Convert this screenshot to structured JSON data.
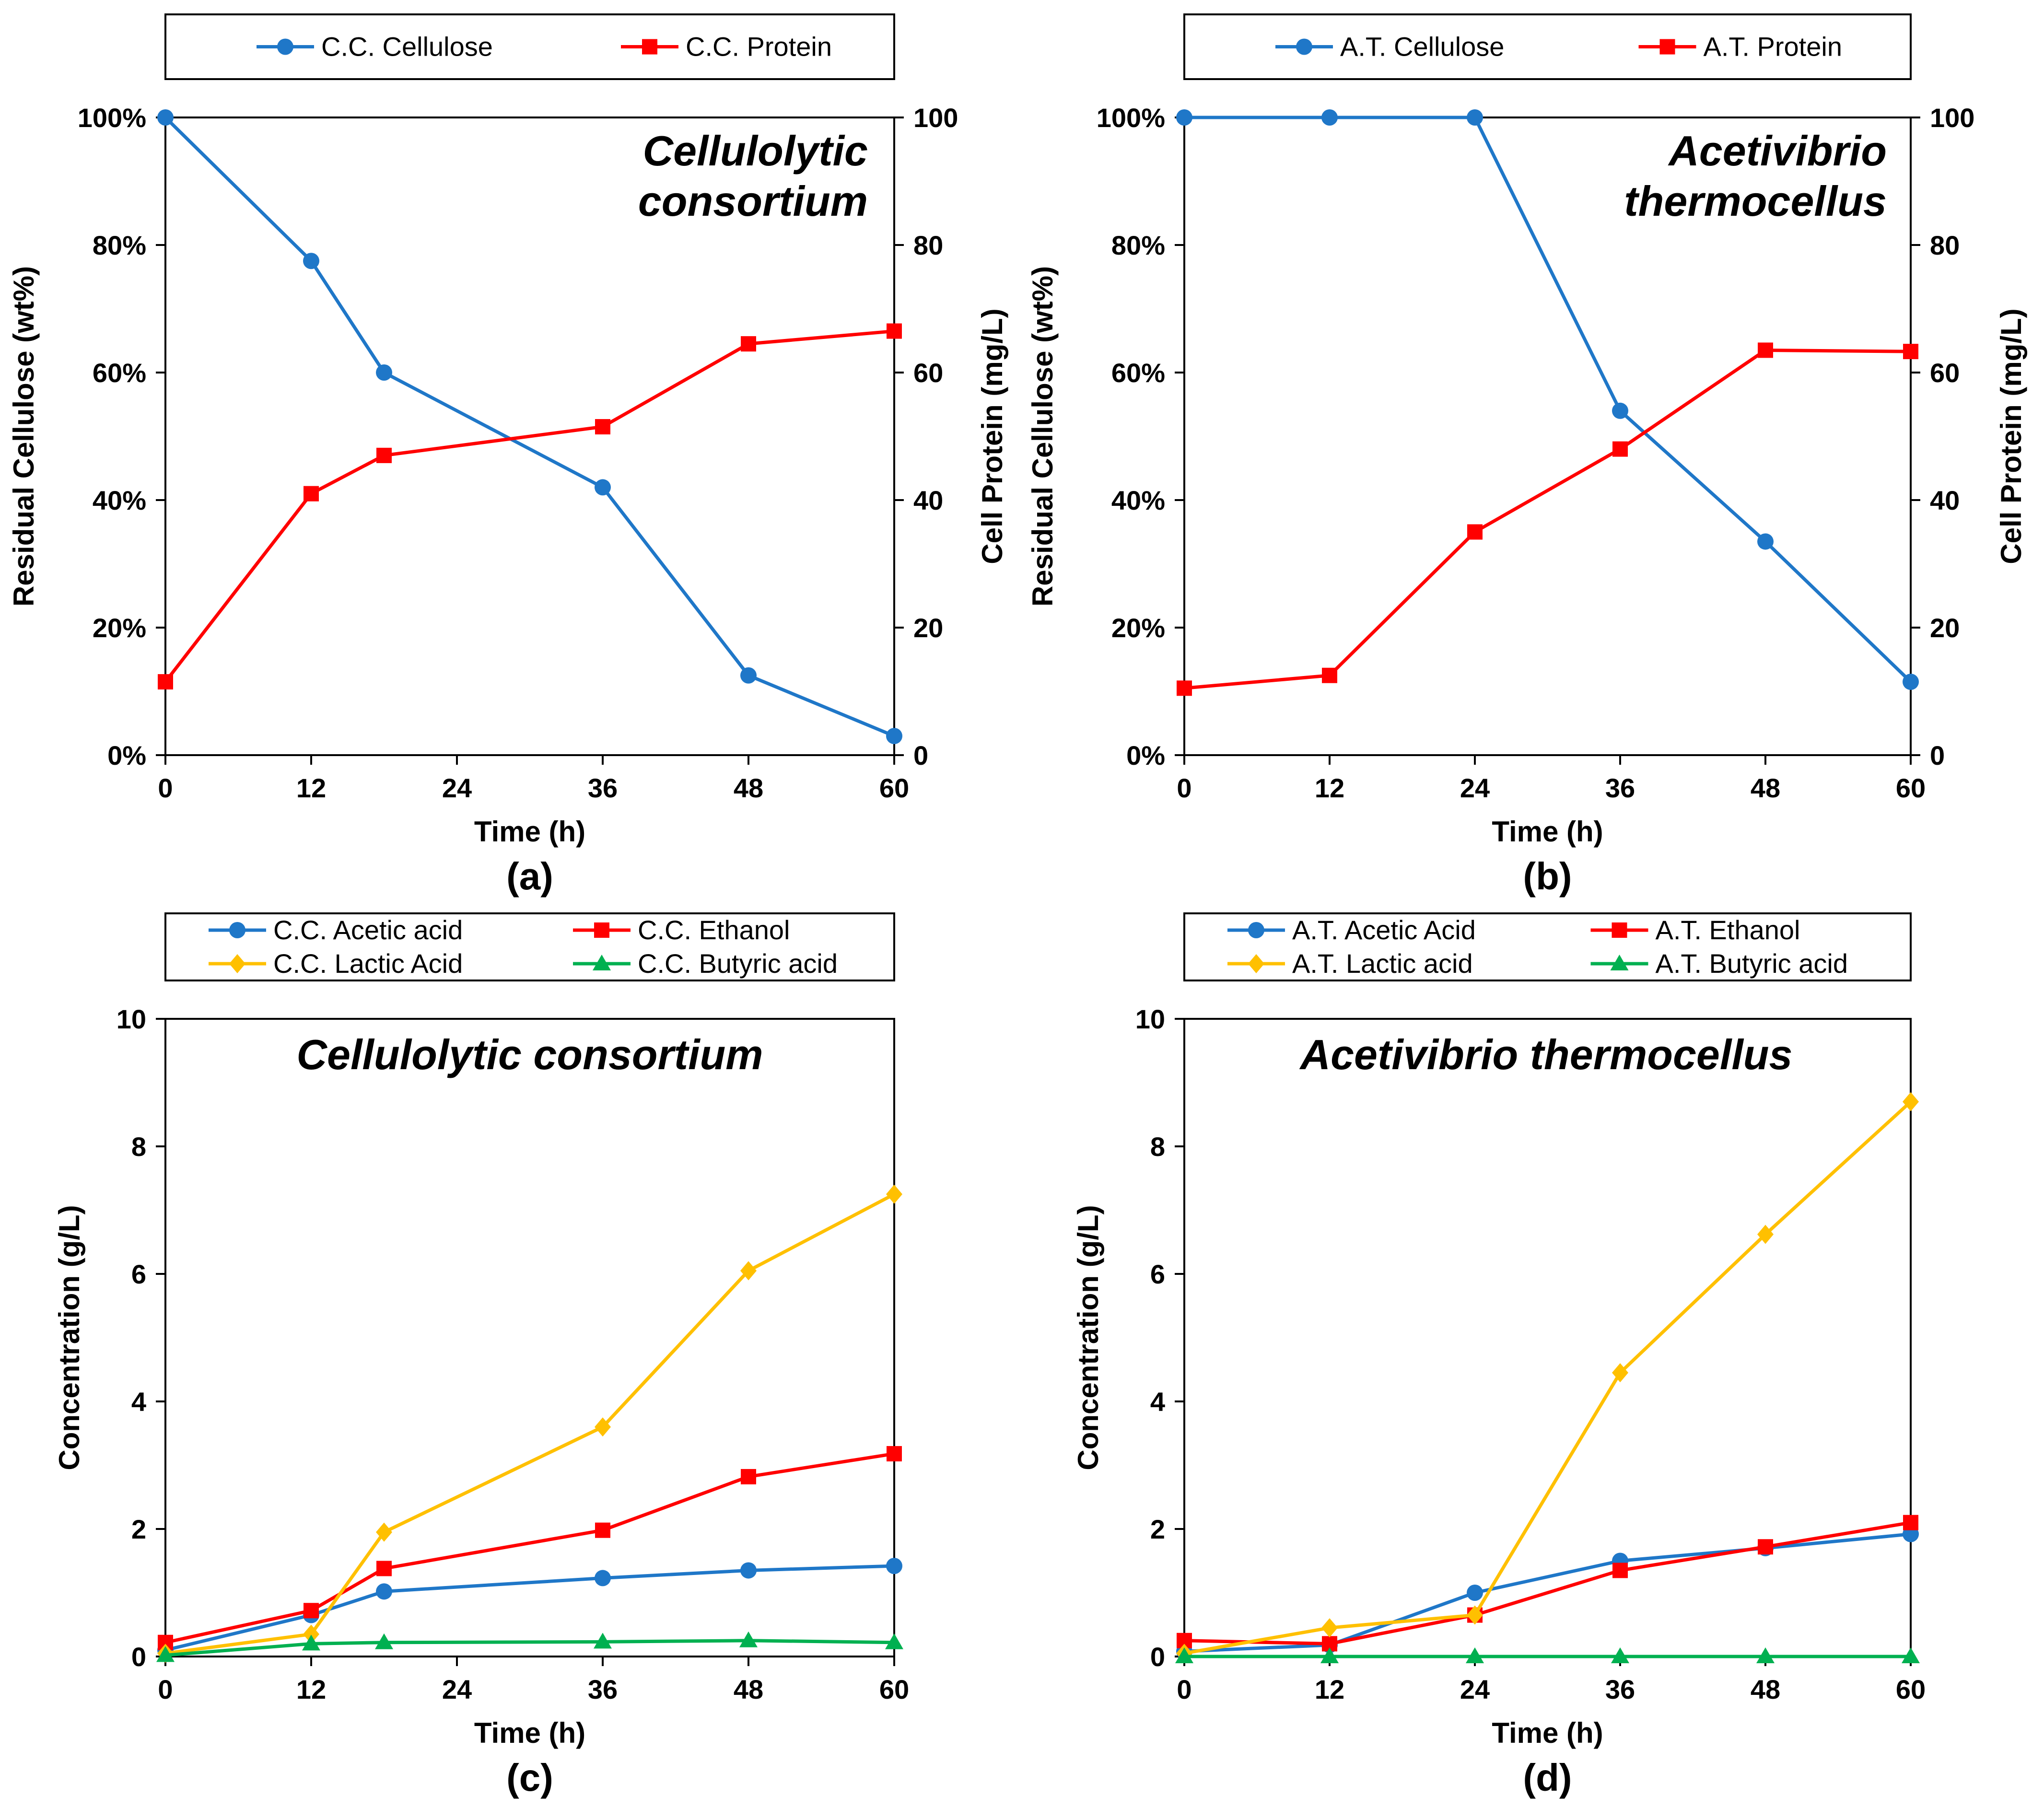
{
  "chart_data": [
    {
      "type": "line",
      "panel": "(a)",
      "title": [
        "Cellulolytic",
        "consortium"
      ],
      "xlabel": "Time (h)",
      "ylabel": "Residual Cellulose  (wt%)",
      "y2label": "Cell Protein  (mg/L)",
      "xlim": [
        0,
        60
      ],
      "ylim": [
        0,
        100
      ],
      "y2lim": [
        0,
        100
      ],
      "xticks": [
        "0",
        "12",
        "24",
        "36",
        "48",
        "60"
      ],
      "yticks": [
        "0%",
        "20%",
        "40%",
        "60%",
        "80%",
        "100%"
      ],
      "y2ticks": [
        "0",
        "20",
        "40",
        "60",
        "80",
        "100"
      ],
      "legend_position": "top-outside",
      "legend_columns": 2,
      "series": [
        {
          "name": "C.C. Cellulose",
          "color": "#1f77c8",
          "marker": "circle",
          "axis": "left",
          "x": [
            0,
            12,
            18,
            36,
            48,
            60
          ],
          "y": [
            100,
            77.5,
            60,
            42,
            12.5,
            3
          ]
        },
        {
          "name": "C.C. Protein",
          "color": "#ff0000",
          "marker": "square",
          "axis": "right",
          "x": [
            0,
            12,
            18,
            36,
            48,
            60
          ],
          "y": [
            11.5,
            41,
            47,
            51.5,
            64.5,
            66.5
          ]
        }
      ]
    },
    {
      "type": "line",
      "panel": "(b)",
      "title": [
        "Acetivibrio",
        "thermocellus"
      ],
      "xlabel": "Time (h)",
      "ylabel": "Residual Cellulose  (wt%)",
      "y2label": "Cell Protein  (mg/L)",
      "xlim": [
        0,
        60
      ],
      "ylim": [
        0,
        100
      ],
      "y2lim": [
        0,
        100
      ],
      "xticks": [
        "0",
        "12",
        "24",
        "36",
        "48",
        "60"
      ],
      "yticks": [
        "0%",
        "20%",
        "40%",
        "60%",
        "80%",
        "100%"
      ],
      "y2ticks": [
        "0",
        "20",
        "40",
        "60",
        "80",
        "100"
      ],
      "legend_position": "top-outside",
      "legend_columns": 2,
      "series": [
        {
          "name": "A.T. Cellulose",
          "color": "#1f77c8",
          "marker": "circle",
          "axis": "left",
          "x": [
            0,
            12,
            24,
            36,
            48,
            60
          ],
          "y": [
            100,
            100,
            100,
            54,
            33.5,
            11.5
          ]
        },
        {
          "name": "A.T. Protein",
          "color": "#ff0000",
          "marker": "square",
          "axis": "right",
          "x": [
            0,
            12,
            24,
            36,
            48,
            60
          ],
          "y": [
            10.5,
            12.5,
            35,
            48,
            63.5,
            63.3
          ]
        }
      ]
    },
    {
      "type": "line",
      "panel": "(c)",
      "title": [
        "Cellulolytic consortium"
      ],
      "xlabel": "Time (h)",
      "ylabel": "Concentration (g/L)",
      "xlim": [
        0,
        60
      ],
      "ylim": [
        0,
        10
      ],
      "xticks": [
        "0",
        "12",
        "24",
        "36",
        "48",
        "60"
      ],
      "yticks": [
        "0",
        "2",
        "4",
        "6",
        "8",
        "10"
      ],
      "legend_position": "top-outside",
      "legend_columns": 2,
      "series": [
        {
          "name": "C.C. Acetic acid",
          "color": "#1f77c8",
          "marker": "circle",
          "x": [
            0,
            12,
            18,
            36,
            48,
            60
          ],
          "y": [
            0.1,
            0.65,
            1.02,
            1.23,
            1.35,
            1.42
          ]
        },
        {
          "name": "C.C. Ethanol",
          "color": "#ff0000",
          "marker": "square",
          "x": [
            0,
            12,
            18,
            36,
            48,
            60
          ],
          "y": [
            0.22,
            0.72,
            1.38,
            1.98,
            2.82,
            3.18
          ]
        },
        {
          "name": "C.C. Lactic Acid",
          "color": "#ffc000",
          "marker": "diamond",
          "x": [
            0,
            12,
            18,
            36,
            48,
            60
          ],
          "y": [
            0.05,
            0.35,
            1.95,
            3.6,
            6.05,
            7.25
          ]
        },
        {
          "name": "C.C. Butyric acid",
          "color": "#00b050",
          "marker": "triangle",
          "x": [
            0,
            12,
            18,
            36,
            48,
            60
          ],
          "y": [
            0.02,
            0.2,
            0.22,
            0.23,
            0.25,
            0.22
          ]
        }
      ]
    },
    {
      "type": "line",
      "panel": "(d)",
      "title": [
        "Acetivibrio thermocellus"
      ],
      "xlabel": "Time (h)",
      "ylabel": "Concentration (g/L)",
      "xlim": [
        0,
        60
      ],
      "ylim": [
        0,
        10
      ],
      "xticks": [
        "0",
        "12",
        "24",
        "36",
        "48",
        "60"
      ],
      "yticks": [
        "0",
        "2",
        "4",
        "6",
        "8",
        "10"
      ],
      "legend_position": "top-outside",
      "legend_columns": 2,
      "series": [
        {
          "name": "A.T. Acetic Acid",
          "color": "#1f77c8",
          "marker": "circle",
          "x": [
            0,
            12,
            24,
            36,
            48,
            60
          ],
          "y": [
            0.08,
            0.18,
            1.0,
            1.5,
            1.7,
            1.92
          ]
        },
        {
          "name": "A.T. Ethanol",
          "color": "#ff0000",
          "marker": "square",
          "x": [
            0,
            12,
            24,
            36,
            48,
            60
          ],
          "y": [
            0.25,
            0.2,
            0.65,
            1.35,
            1.72,
            2.1
          ]
        },
        {
          "name": "A.T. Lactic acid",
          "color": "#ffc000",
          "marker": "diamond",
          "x": [
            0,
            12,
            24,
            36,
            48,
            60
          ],
          "y": [
            0.05,
            0.45,
            0.65,
            4.45,
            6.62,
            8.7
          ]
        },
        {
          "name": "A.T. Butyric acid",
          "color": "#00b050",
          "marker": "triangle",
          "x": [
            0,
            12,
            24,
            36,
            48,
            60
          ],
          "y": [
            0.0,
            0.0,
            0.0,
            0.0,
            0.0,
            0.0
          ]
        }
      ]
    }
  ]
}
